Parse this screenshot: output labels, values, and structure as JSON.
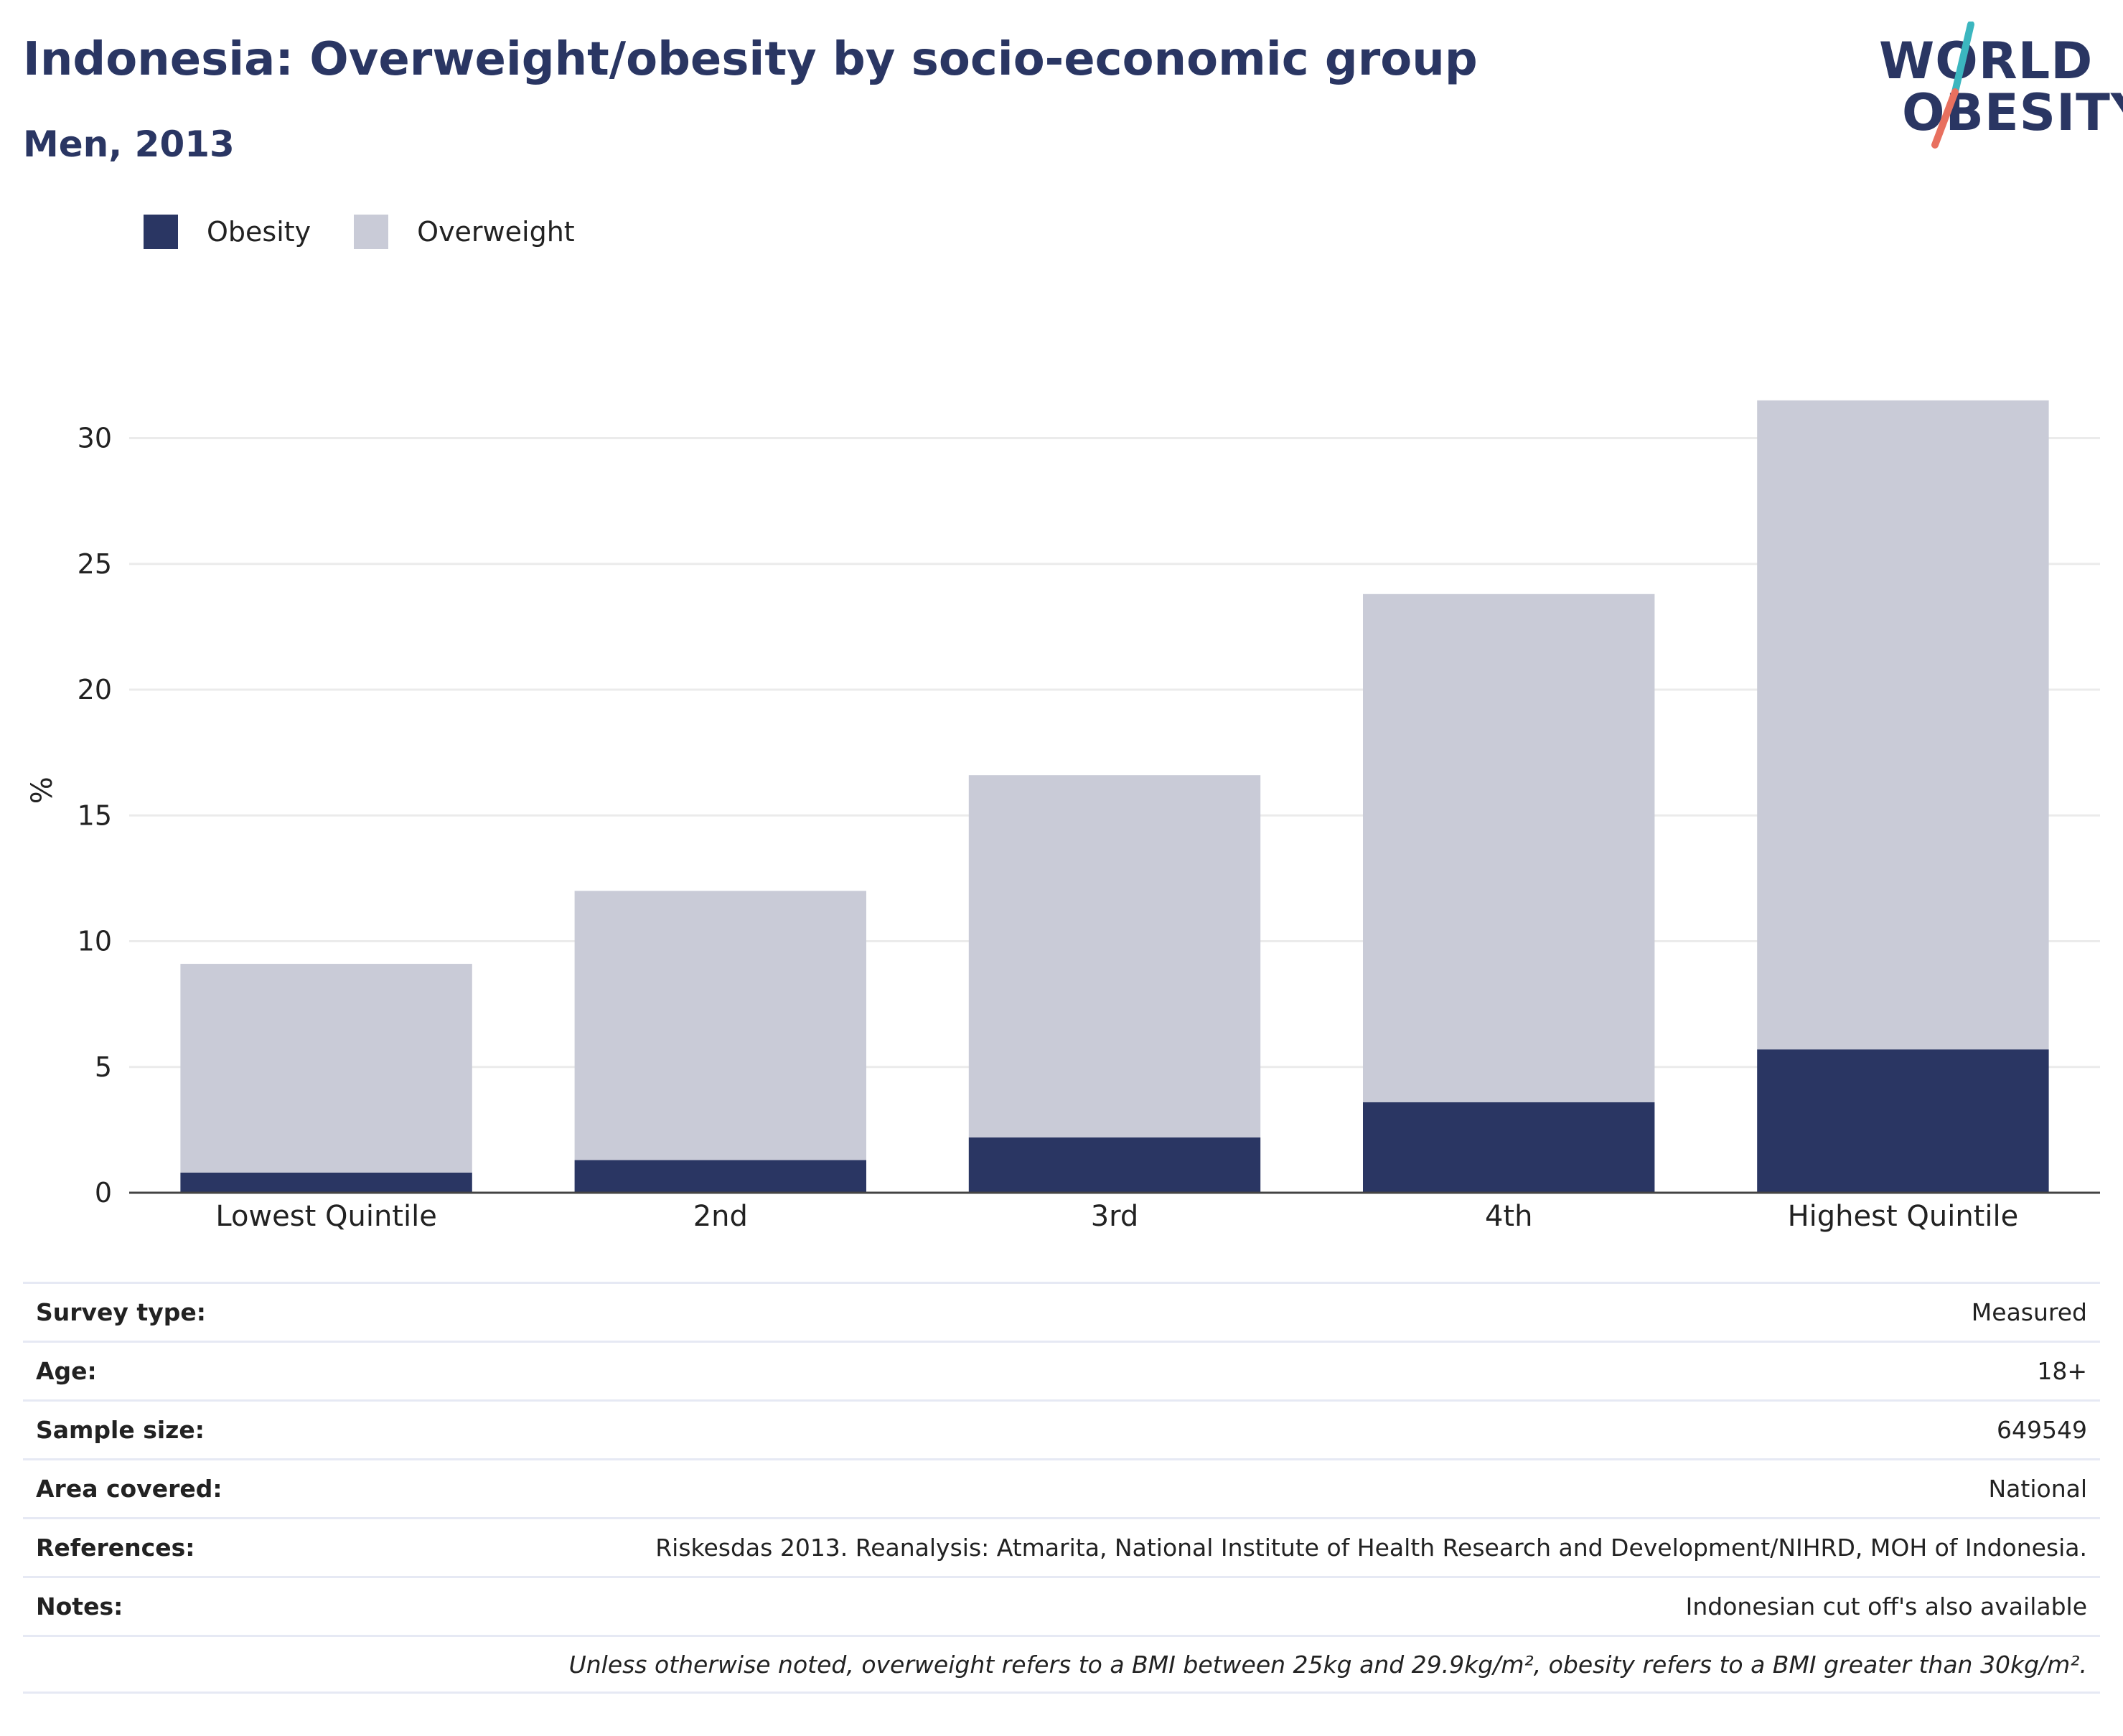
{
  "header": {
    "title": "Indonesia: Overweight/obesity by socio-economic group",
    "subtitle": "Men, 2013"
  },
  "logo": {
    "line1": "WORLD",
    "line2": "OBESITY",
    "slash_colors": [
      "#3bb6bf",
      "#e8705f"
    ]
  },
  "legend": {
    "items": [
      {
        "label": "Obesity",
        "color": "#2a3663"
      },
      {
        "label": "Overweight",
        "color": "#c9cbd7"
      }
    ]
  },
  "chart_data": {
    "type": "bar",
    "stacked": true,
    "categories": [
      "Lowest Quintile",
      "2nd",
      "3rd",
      "4th",
      "Highest Quintile"
    ],
    "series": [
      {
        "name": "Obesity",
        "color": "#2a3663",
        "values": [
          0.8,
          1.3,
          2.2,
          3.6,
          5.7
        ]
      },
      {
        "name": "Overweight",
        "color": "#c9cbd7",
        "values": [
          8.3,
          10.7,
          14.4,
          20.2,
          25.8
        ]
      }
    ],
    "ylabel": "%",
    "ylim": [
      0,
      32
    ],
    "yticks": [
      0,
      5,
      10,
      15,
      20,
      25,
      30
    ],
    "grid": true,
    "legend_position": "top-left"
  },
  "meta": {
    "rows": [
      {
        "label": "Survey type:",
        "value": "Measured"
      },
      {
        "label": "Age:",
        "value": "18+"
      },
      {
        "label": "Sample size:",
        "value": "649549"
      },
      {
        "label": "Area covered:",
        "value": "National"
      },
      {
        "label": "References:",
        "value": "Riskesdas 2013. Reanalysis: Atmarita, National Institute of Health Research and Development/NIHRD, MOH of Indonesia."
      },
      {
        "label": "Notes:",
        "value": "Indonesian cut off's also available"
      }
    ],
    "footnote": "Unless otherwise noted, overweight refers to a BMI between 25kg and 29.9kg/m², obesity refers to a BMI greater than 30kg/m²."
  }
}
